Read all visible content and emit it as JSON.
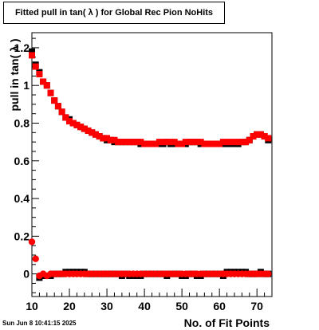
{
  "chart_data": {
    "type": "scatter",
    "title": "Fitted pull in tan( λ  ) for Global Rec Pion NoHits",
    "xlabel": "No. of Fit Points",
    "ylabel": "pull in tan( λ )",
    "xlim": [
      10,
      74
    ],
    "ylim": [
      -0.12,
      1.28
    ],
    "xticks": [
      10,
      20,
      30,
      40,
      50,
      60,
      70
    ],
    "yticks": [
      0,
      0.2,
      0.4,
      0.6,
      0.8,
      1,
      1.2
    ],
    "x_tick_labels": [
      "10",
      "20",
      "30",
      "40",
      "50",
      "60",
      "70"
    ],
    "y_tick_labels": [
      "0",
      "0.2",
      "0.4",
      "0.6",
      "0.8",
      "1",
      "1.2"
    ],
    "grid": false,
    "series": [
      {
        "marker": "square",
        "color": "#000000",
        "x": [
          10,
          11,
          12,
          13,
          14,
          15,
          16,
          17,
          18,
          19,
          20,
          21,
          22,
          23,
          24,
          25,
          26,
          27,
          28,
          29,
          30,
          31,
          32,
          33,
          34,
          35,
          36,
          37,
          38,
          39,
          40,
          41,
          42,
          43,
          44,
          45,
          46,
          47,
          48,
          49,
          50,
          51,
          52,
          53,
          54,
          55,
          56,
          57,
          58,
          59,
          60,
          61,
          62,
          63,
          64,
          65,
          66,
          67,
          68,
          69,
          70,
          71,
          72,
          73
        ],
        "y": [
          1.18,
          1.11,
          1.07,
          1.02,
          1.0,
          0.96,
          0.92,
          0.89,
          0.86,
          0.83,
          0.82,
          0.8,
          0.79,
          0.78,
          0.77,
          0.76,
          0.75,
          0.74,
          0.73,
          0.72,
          0.71,
          0.71,
          0.7,
          0.7,
          0.7,
          0.7,
          0.7,
          0.7,
          0.7,
          0.69,
          0.69,
          0.69,
          0.69,
          0.69,
          0.69,
          0.69,
          0.7,
          0.69,
          0.69,
          0.69,
          0.69,
          0.69,
          0.7,
          0.7,
          0.7,
          0.69,
          0.69,
          0.69,
          0.69,
          0.69,
          0.69,
          0.69,
          0.69,
          0.69,
          0.69,
          0.69,
          0.7,
          0.7,
          0.71,
          0.73,
          0.74,
          0.74,
          0.73,
          0.71
        ]
      },
      {
        "marker": "square",
        "color": "#ff0000",
        "x": [
          10,
          11,
          12,
          13,
          14,
          15,
          16,
          17,
          18,
          19,
          20,
          21,
          22,
          23,
          24,
          25,
          26,
          27,
          28,
          29,
          30,
          31,
          32,
          33,
          34,
          35,
          36,
          37,
          38,
          39,
          40,
          41,
          42,
          43,
          44,
          45,
          46,
          47,
          48,
          49,
          50,
          51,
          52,
          53,
          54,
          55,
          56,
          57,
          58,
          59,
          60,
          61,
          62,
          63,
          64,
          65,
          66,
          67,
          68,
          69,
          70,
          71,
          72,
          73
        ],
        "y": [
          1.16,
          1.1,
          1.06,
          1.02,
          1.0,
          0.96,
          0.92,
          0.89,
          0.86,
          0.83,
          0.81,
          0.8,
          0.79,
          0.78,
          0.77,
          0.76,
          0.75,
          0.74,
          0.73,
          0.72,
          0.72,
          0.71,
          0.71,
          0.7,
          0.7,
          0.7,
          0.7,
          0.7,
          0.7,
          0.7,
          0.69,
          0.69,
          0.69,
          0.69,
          0.7,
          0.7,
          0.7,
          0.7,
          0.7,
          0.69,
          0.69,
          0.7,
          0.7,
          0.7,
          0.7,
          0.7,
          0.69,
          0.69,
          0.69,
          0.69,
          0.69,
          0.7,
          0.7,
          0.7,
          0.7,
          0.7,
          0.7,
          0.7,
          0.71,
          0.73,
          0.74,
          0.74,
          0.73,
          0.72
        ]
      },
      {
        "marker": "square",
        "color": "#000000",
        "x": [
          12,
          13,
          14,
          15,
          16,
          17,
          18,
          19,
          20,
          21,
          22,
          23,
          24,
          25,
          26,
          27,
          28,
          29,
          30,
          31,
          32,
          33,
          34,
          35,
          36,
          37,
          38,
          39,
          40,
          41,
          42,
          43,
          44,
          45,
          46,
          47,
          48,
          49,
          50,
          51,
          52,
          53,
          54,
          55,
          56,
          57,
          58,
          59,
          60,
          61,
          62,
          63,
          64,
          65,
          66,
          67,
          68,
          69,
          70,
          71,
          72,
          73
        ],
        "y": [
          -0.02,
          -0.01,
          -0.01,
          -0.01,
          0.0,
          0.0,
          0.0,
          0.01,
          0.01,
          0.01,
          0.01,
          0.01,
          0.01,
          0.0,
          0.0,
          0.0,
          0.0,
          0.0,
          0.0,
          0.0,
          0.0,
          0.0,
          -0.01,
          0.0,
          -0.01,
          -0.01,
          -0.01,
          -0.01,
          0.0,
          0.0,
          0.0,
          0.0,
          0.0,
          0.0,
          -0.01,
          0.0,
          0.0,
          0.0,
          -0.01,
          -0.01,
          0.0,
          0.0,
          -0.01,
          -0.01,
          0.0,
          0.0,
          0.0,
          0.0,
          0.0,
          -0.01,
          0.01,
          0.01,
          0.01,
          0.01,
          0.01,
          0.01,
          0.0,
          0.0,
          0.0,
          0.01,
          0.0,
          0.0
        ]
      },
      {
        "marker": "circle",
        "color": "#ff0000",
        "x": [
          10,
          11,
          12,
          13,
          14,
          15,
          16,
          17,
          18,
          19,
          20,
          21,
          22,
          23,
          24,
          25,
          26,
          27,
          28,
          29,
          30,
          31,
          32,
          33,
          34,
          35,
          36,
          37,
          38,
          39,
          40,
          41,
          42,
          43,
          44,
          45,
          46,
          47,
          48,
          49,
          50,
          51,
          52,
          53,
          54,
          55,
          56,
          57,
          58,
          59,
          60,
          61,
          62,
          63,
          64,
          65,
          66,
          67,
          68,
          69,
          70,
          71,
          72,
          73
        ],
        "y": [
          0.17,
          0.08,
          -0.01,
          0.0,
          -0.01,
          0.0,
          0.0,
          0.0,
          0.0,
          0.0,
          0.0,
          0.0,
          0.0,
          0.0,
          0.0,
          0.0,
          0.0,
          0.0,
          0.0,
          0.0,
          0.0,
          0.0,
          0.0,
          0.0,
          0.0,
          0.0,
          0.0,
          0.0,
          0.0,
          0.0,
          0.0,
          0.0,
          0.0,
          0.0,
          0.0,
          0.0,
          0.0,
          0.0,
          0.0,
          0.0,
          0.0,
          0.0,
          0.0,
          0.0,
          0.0,
          0.0,
          0.0,
          0.0,
          0.0,
          0.0,
          0.0,
          0.0,
          0.0,
          0.0,
          0.0,
          0.0,
          0.0,
          0.0,
          0.0,
          0.0,
          0.0,
          0.0,
          0.0,
          0.0
        ]
      }
    ]
  },
  "footer": {
    "datestamp": "Sun Jun  8 10:41:15 2025"
  }
}
